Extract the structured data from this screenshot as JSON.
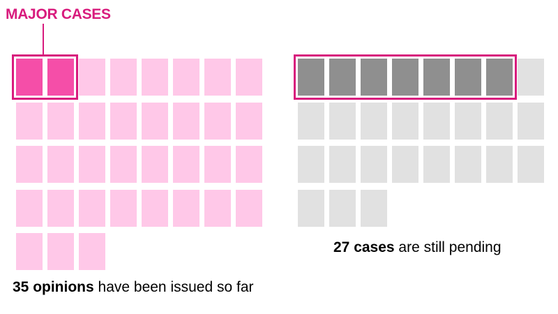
{
  "chart_data": {
    "type": "waffle",
    "callout": {
      "label": "MAJOR CASES"
    },
    "groups": [
      {
        "id": "issued",
        "count": 35,
        "highlight_count": 2,
        "color": "#ffc8e8",
        "highlight_color": "#f54ea8",
        "caption_bold": "35 opinions",
        "caption_rest": " have been issued so far"
      },
      {
        "id": "pending",
        "count": 27,
        "highlight_count": 7,
        "color": "#e1e1e1",
        "highlight_color": "#8f8f8f",
        "caption_bold": "27 cases",
        "caption_rest": " are still pending"
      }
    ],
    "accent_color": "#d81b7d"
  }
}
